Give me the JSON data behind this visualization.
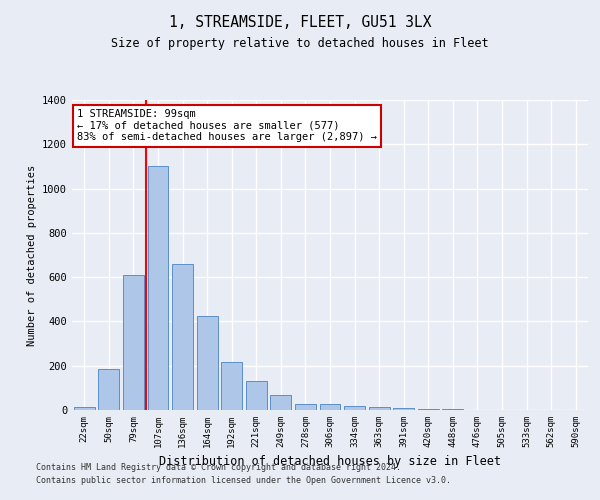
{
  "title1": "1, STREAMSIDE, FLEET, GU51 3LX",
  "title2": "Size of property relative to detached houses in Fleet",
  "xlabel": "Distribution of detached houses by size in Fleet",
  "ylabel": "Number of detached properties",
  "categories": [
    "22sqm",
    "50sqm",
    "79sqm",
    "107sqm",
    "136sqm",
    "164sqm",
    "192sqm",
    "221sqm",
    "249sqm",
    "278sqm",
    "306sqm",
    "334sqm",
    "363sqm",
    "391sqm",
    "420sqm",
    "448sqm",
    "476sqm",
    "505sqm",
    "533sqm",
    "562sqm",
    "590sqm"
  ],
  "values": [
    15,
    185,
    610,
    1100,
    660,
    425,
    215,
    130,
    68,
    28,
    25,
    20,
    12,
    8,
    5,
    3,
    2,
    1,
    1,
    0,
    0
  ],
  "bar_color": "#aec6e8",
  "bar_edge_color": "#5b8fc9",
  "annotation_line1": "1 STREAMSIDE: 99sqm",
  "annotation_line2": "← 17% of detached houses are smaller (577)",
  "annotation_line3": "83% of semi-detached houses are larger (2,897) →",
  "annotation_box_color": "#ffffff",
  "annotation_box_edge_color": "#cc0000",
  "red_line_index": 2.5,
  "ylim": [
    0,
    1400
  ],
  "yticks": [
    0,
    200,
    400,
    600,
    800,
    1000,
    1200,
    1400
  ],
  "footer1": "Contains HM Land Registry data © Crown copyright and database right 2024.",
  "footer2": "Contains public sector information licensed under the Open Government Licence v3.0.",
  "background_color": "#e8edf5",
  "plot_background_color": "#e8edf5",
  "grid_color": "#ffffff"
}
